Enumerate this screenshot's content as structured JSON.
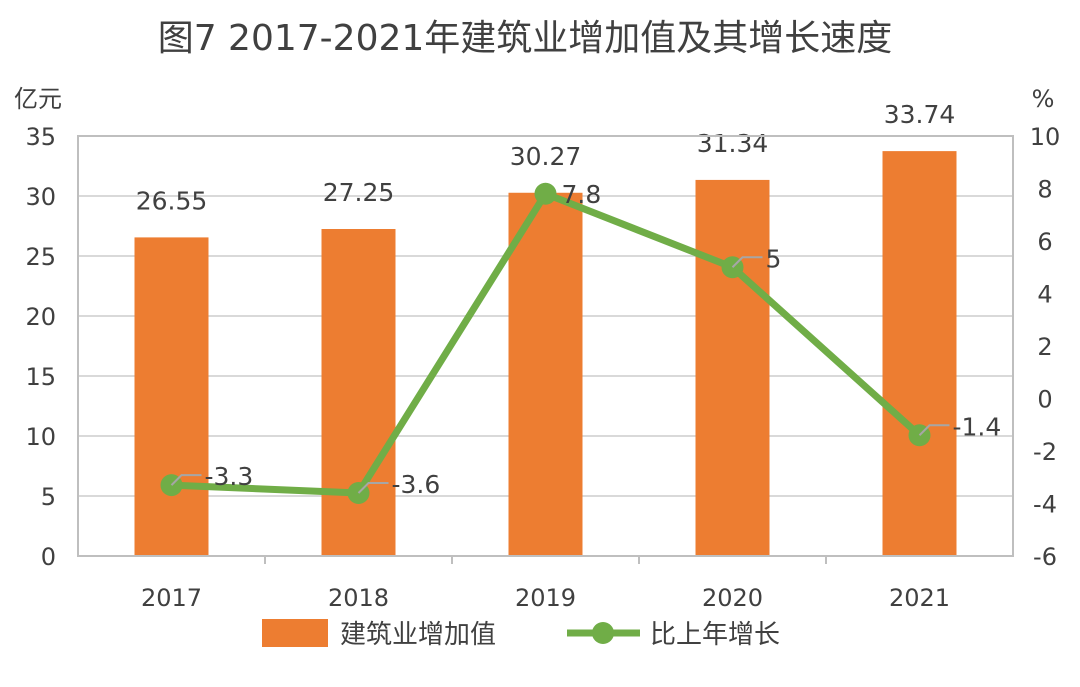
{
  "chart_data": {
    "type": "bar+line",
    "title": "图7    2017-2021年建筑业增加值及其增长速度",
    "categories": [
      "2017",
      "2018",
      "2019",
      "2020",
      "2021"
    ],
    "y_left": {
      "label": "亿元",
      "range": [
        0,
        35
      ],
      "ticks": [
        "0",
        "5",
        "10",
        "15",
        "20",
        "25",
        "30",
        "35"
      ]
    },
    "y_right": {
      "label": "%",
      "range": [
        -6,
        10
      ],
      "ticks": [
        "-6",
        "-4",
        "-2",
        "0",
        "2",
        "4",
        "6",
        "8",
        "10"
      ]
    },
    "grid": true,
    "legend_position": "bottom",
    "series": [
      {
        "name": "建筑业增加值",
        "type": "bar",
        "axis": "left",
        "color": "#ED7D31",
        "values": [
          26.55,
          27.25,
          30.27,
          31.34,
          33.74
        ],
        "labels": [
          "26.55",
          "27.25",
          "30.27",
          "31.34",
          "33.74"
        ]
      },
      {
        "name": "比上年增长",
        "type": "line",
        "axis": "right",
        "color": "#70AD47",
        "values": [
          -3.3,
          -3.6,
          7.8,
          5,
          -1.4
        ],
        "labels": [
          "-3.3",
          "-3.6",
          "7.8",
          "5",
          "-1.4"
        ]
      }
    ]
  }
}
